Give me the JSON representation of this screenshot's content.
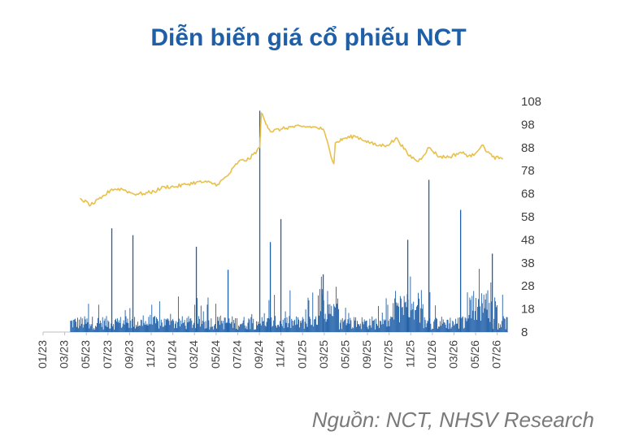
{
  "chart_data": {
    "type": "bar+line",
    "title": "Diễn biến giá cổ phiếu NCT",
    "source": "Nguồn: NCT, NHSV Research",
    "colors": {
      "title": "#1f5fa8",
      "price_line": "#e8c04a",
      "volume_bars": "#1f5fa8",
      "axis": "#bfbfbf",
      "text": "#404040"
    },
    "y_axis": {
      "side": "right",
      "ticks": [
        8,
        18,
        28,
        38,
        48,
        58,
        68,
        78,
        88,
        98,
        108
      ],
      "ylim": [
        8,
        108
      ]
    },
    "x_ticks": [
      "01/23",
      "03/23",
      "05/23",
      "07/23",
      "09/23",
      "11/23",
      "01/24",
      "03/24",
      "05/24",
      "07/24",
      "09/24",
      "11/24",
      "01/25",
      "03/25",
      "05/25",
      "09/25",
      "07/25",
      "11/25",
      "01/26",
      "03/26",
      "05/26",
      "07/26"
    ],
    "x_ticks_note": "",
    "period": {
      "start_month": "01/23",
      "end_month": "08/26"
    },
    "series": [
      {
        "type": "line",
        "points": [
          [
            "04/23",
            66
          ],
          [
            "05/23",
            63
          ],
          [
            "06/23",
            66
          ],
          [
            "07/23",
            70
          ],
          [
            "08/23",
            70
          ],
          [
            "09/23",
            68
          ],
          [
            "10/23",
            68
          ],
          [
            "11/23",
            69
          ],
          [
            "12/23",
            71
          ],
          [
            "01/24",
            71
          ],
          [
            "02/24",
            72
          ],
          [
            "03/24",
            73
          ],
          [
            "04/24",
            73
          ],
          [
            "05/24",
            72
          ],
          [
            "06/24",
            76
          ],
          [
            "07/24",
            82
          ],
          [
            "08/24",
            83
          ],
          [
            "09/24",
            88
          ],
          [
            "09/24",
            103
          ],
          [
            "10/24",
            95
          ],
          [
            "11/24",
            96
          ],
          [
            "12/24",
            97
          ],
          [
            "01/25",
            97
          ],
          [
            "02/25",
            97
          ],
          [
            "03/25",
            96
          ],
          [
            "04/25",
            81
          ],
          [
            "04/25",
            90
          ],
          [
            "05/25",
            92
          ],
          [
            "06/25",
            93
          ],
          [
            "07/25",
            91
          ],
          [
            "08/25",
            89
          ],
          [
            "09/25",
            89
          ],
          [
            "10/25",
            92
          ],
          [
            "11/25",
            85
          ],
          [
            "12/25",
            82
          ],
          [
            "01/26",
            88
          ],
          [
            "02/26",
            84
          ],
          [
            "03/26",
            84
          ],
          [
            "04/26",
            86
          ],
          [
            "05/26",
            84
          ],
          [
            "06/26",
            89
          ],
          [
            "07/26",
            84
          ],
          [
            "08/26",
            83
          ]
        ]
      },
      {
        "type": "bar",
        "spikes": [
          [
            "07/23",
            53
          ],
          [
            "09/23",
            50
          ],
          [
            "03/24",
            45
          ],
          [
            "06/24",
            35
          ],
          [
            "09/24",
            104
          ],
          [
            "10/24",
            47
          ],
          [
            "11/24",
            57
          ],
          [
            "03/25",
            33
          ],
          [
            "11/25",
            48
          ],
          [
            "01/26",
            74
          ],
          [
            "04/26",
            61
          ],
          [
            "07/26",
            42
          ]
        ]
      }
    ]
  }
}
